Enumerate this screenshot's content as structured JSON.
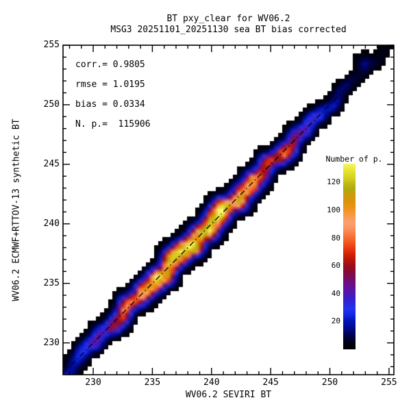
{
  "titles": {
    "line1": "BT pxy_clear for WV06.2",
    "line2": "MSG3 20251101_20251130 sea BT bias corrected"
  },
  "stats_lines": [
    "corr.= 0.9805",
    "rmse = 1.0195",
    "bias = 0.0334",
    "N. p.=  115906"
  ],
  "chart_data": {
    "type": "heatmap",
    "title": "BT pxy_clear for WV06.2",
    "subtitle": "MSG3 20251101_20251130 sea BT bias corrected",
    "xlabel": "WV06.2 SEVIRI BT",
    "ylabel": "WV06.2 ECMWF+RTTOV-13 synthetic BT",
    "xlim": [
      227.45,
      255.41
    ],
    "ylim": [
      227.33,
      255.0
    ],
    "xticks": [
      230,
      235,
      240,
      245,
      250,
      255
    ],
    "yticks": [
      230,
      235,
      240,
      245,
      250,
      255
    ],
    "minor_tick_step": 1,
    "grid": false,
    "stats": {
      "corr": 0.9805,
      "rmse": 1.0195,
      "bias": 0.0334,
      "n_points": 115906
    },
    "identity_line": {
      "style": "dash-dot",
      "color": "#000000"
    },
    "colorbar": {
      "title": "Number of p.",
      "ticks": [
        20,
        40,
        60,
        80,
        100,
        120
      ],
      "vmin": 0,
      "vmax": 133.5,
      "position": "right"
    },
    "density_model": {
      "comment": "2D histogram of synthetic vs observed BT; counts ridge along y=x",
      "vmax": 135,
      "threshold": 1.0,
      "bin_size_k": 0.35,
      "noise_amp": 0.13,
      "ridge_profile": [
        [
          226.0,
          12
        ],
        [
          228.0,
          20
        ],
        [
          229.0,
          28
        ],
        [
          230.0,
          38
        ],
        [
          231.0,
          50
        ],
        [
          232.0,
          62
        ],
        [
          233.0,
          80
        ],
        [
          234.0,
          95
        ],
        [
          235.0,
          110
        ],
        [
          235.8,
          122
        ],
        [
          237.0,
          132
        ],
        [
          238.0,
          128
        ],
        [
          239.0,
          133
        ],
        [
          240.0,
          126
        ],
        [
          241.0,
          130
        ],
        [
          242.0,
          118
        ],
        [
          242.8,
          100
        ],
        [
          243.5,
          88
        ],
        [
          244.5,
          72
        ],
        [
          245.5,
          66
        ],
        [
          246.2,
          74
        ],
        [
          247.0,
          58
        ],
        [
          247.8,
          44
        ],
        [
          248.6,
          34
        ],
        [
          249.5,
          26
        ],
        [
          250.5,
          18
        ],
        [
          251.5,
          11
        ],
        [
          252.5,
          8
        ],
        [
          253.3,
          9
        ],
        [
          254.2,
          5
        ],
        [
          255.5,
          3
        ]
      ],
      "sigma_profile": [
        [
          226.0,
          0.55
        ],
        [
          230.0,
          0.65
        ],
        [
          234.0,
          0.75
        ],
        [
          238.0,
          0.82
        ],
        [
          242.0,
          0.8
        ],
        [
          246.0,
          0.72
        ],
        [
          249.0,
          0.62
        ],
        [
          252.0,
          0.5
        ],
        [
          255.5,
          0.45
        ]
      ],
      "ridge_wobble": [
        [
          1.7,
          0.2,
          0.5
        ],
        [
          3.1,
          0.14,
          2.0
        ],
        [
          5.3,
          0.09,
          4.0
        ]
      ],
      "amp_wobble": [
        [
          2.3,
          0.1,
          1.1
        ],
        [
          4.7,
          0.07,
          0.3
        ]
      ],
      "extra_blobs": [
        {
          "x": 252.9,
          "y": 253.6,
          "sigma": 0.45,
          "amp": 9
        }
      ]
    },
    "colormap": [
      [
        0,
        "#000000"
      ],
      [
        5,
        "#000018"
      ],
      [
        10,
        "#00004e"
      ],
      [
        15,
        "#000a8c"
      ],
      [
        20,
        "#0014b4"
      ],
      [
        25,
        "#1428e6"
      ],
      [
        29,
        "#2433f0"
      ],
      [
        33,
        "#2d28dc"
      ],
      [
        37,
        "#3c1ec8"
      ],
      [
        41,
        "#5516b0"
      ],
      [
        45,
        "#641296"
      ],
      [
        49,
        "#701173"
      ],
      [
        52,
        "#7a0c55"
      ],
      [
        56,
        "#880a38"
      ],
      [
        60,
        "#9c0f1c"
      ],
      [
        64,
        "#b8140c"
      ],
      [
        68,
        "#d02008"
      ],
      [
        72,
        "#e63410"
      ],
      [
        76,
        "#f2511c"
      ],
      [
        81,
        "#fa7038"
      ],
      [
        86,
        "#fa8e58"
      ],
      [
        91,
        "#faa273"
      ],
      [
        96,
        "#fa9a4e"
      ],
      [
        101,
        "#f0931c"
      ],
      [
        106,
        "#e0930a"
      ],
      [
        111,
        "#cc9c0c"
      ],
      [
        115,
        "#b0a90e"
      ],
      [
        119,
        "#bdb814"
      ],
      [
        123,
        "#d4cf20"
      ],
      [
        129,
        "#e8e636"
      ],
      [
        135,
        "#fafa6e"
      ]
    ]
  }
}
